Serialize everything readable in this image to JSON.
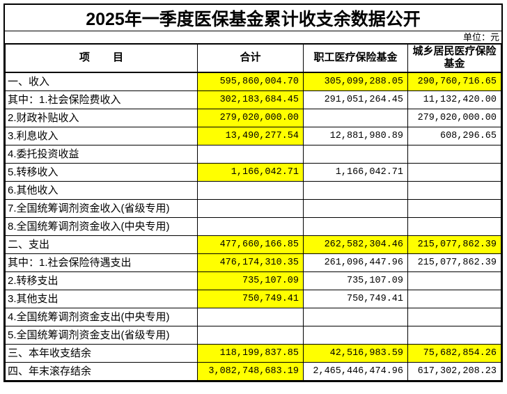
{
  "title": "2025年一季度医保基金累计收支余数据公开",
  "unit_note": "单位：元",
  "colors": {
    "highlight": "#FFFF00",
    "border": "#000000",
    "background": "#FFFFFF"
  },
  "table": {
    "headers": {
      "item": "项        目",
      "total": "合计",
      "employee": "职工医疗保险基金",
      "resident": "城乡居民医疗保险基金"
    },
    "rows": [
      {
        "label": "一、收入",
        "values": [
          "595,860,004.70",
          "305,099,288.05",
          "290,760,716.65"
        ],
        "highlight": [
          true,
          true,
          true
        ]
      },
      {
        "label": "其中：1.社会保险费收入",
        "values": [
          "302,183,684.45",
          "291,051,264.45",
          "11,132,420.00"
        ],
        "highlight": [
          true,
          false,
          false
        ]
      },
      {
        "label": "2.财政补贴收入",
        "values": [
          "279,020,000.00",
          "",
          "279,020,000.00"
        ],
        "highlight": [
          true,
          false,
          false
        ]
      },
      {
        "label": "3.利息收入",
        "values": [
          "13,490,277.54",
          "12,881,980.89",
          "608,296.65"
        ],
        "highlight": [
          true,
          false,
          false
        ]
      },
      {
        "label": "4.委托投资收益",
        "values": [
          "",
          "",
          ""
        ],
        "highlight": [
          false,
          false,
          false
        ]
      },
      {
        "label": "5.转移收入",
        "values": [
          "1,166,042.71",
          "1,166,042.71",
          ""
        ],
        "highlight": [
          true,
          false,
          false
        ]
      },
      {
        "label": "6.其他收入",
        "values": [
          "",
          "",
          ""
        ],
        "highlight": [
          false,
          false,
          false
        ]
      },
      {
        "label": "7.全国统筹调剂资金收入(省级专用)",
        "values": [
          "",
          "",
          ""
        ],
        "highlight": [
          false,
          false,
          false
        ]
      },
      {
        "label": "8.全国统筹调剂资金收入(中央专用)",
        "values": [
          "",
          "",
          ""
        ],
        "highlight": [
          false,
          false,
          false
        ]
      },
      {
        "label": "二、支出",
        "values": [
          "477,660,166.85",
          "262,582,304.46",
          "215,077,862.39"
        ],
        "highlight": [
          true,
          true,
          true
        ]
      },
      {
        "label": "其中：1.社会保险待遇支出",
        "values": [
          "476,174,310.35",
          "261,096,447.96",
          "215,077,862.39"
        ],
        "highlight": [
          true,
          false,
          false
        ]
      },
      {
        "label": "2.转移支出",
        "values": [
          "735,107.09",
          "735,107.09",
          ""
        ],
        "highlight": [
          true,
          false,
          false
        ]
      },
      {
        "label": "3.其他支出",
        "values": [
          "750,749.41",
          "750,749.41",
          ""
        ],
        "highlight": [
          true,
          false,
          false
        ]
      },
      {
        "label": "4.全国统筹调剂资金支出(中央专用)",
        "values": [
          "",
          "",
          ""
        ],
        "highlight": [
          false,
          false,
          false
        ]
      },
      {
        "label": "5.全国统筹调剂资金支出(省级专用)",
        "values": [
          "",
          "",
          ""
        ],
        "highlight": [
          false,
          false,
          false
        ]
      },
      {
        "label": "三、本年收支结余",
        "values": [
          "118,199,837.85",
          "42,516,983.59",
          "75,682,854.26"
        ],
        "highlight": [
          true,
          true,
          true
        ]
      },
      {
        "label": "四、年末滚存结余",
        "values": [
          "3,082,748,683.19",
          "2,465,446,474.96",
          "617,302,208.23"
        ],
        "highlight": [
          true,
          false,
          false
        ]
      }
    ]
  }
}
